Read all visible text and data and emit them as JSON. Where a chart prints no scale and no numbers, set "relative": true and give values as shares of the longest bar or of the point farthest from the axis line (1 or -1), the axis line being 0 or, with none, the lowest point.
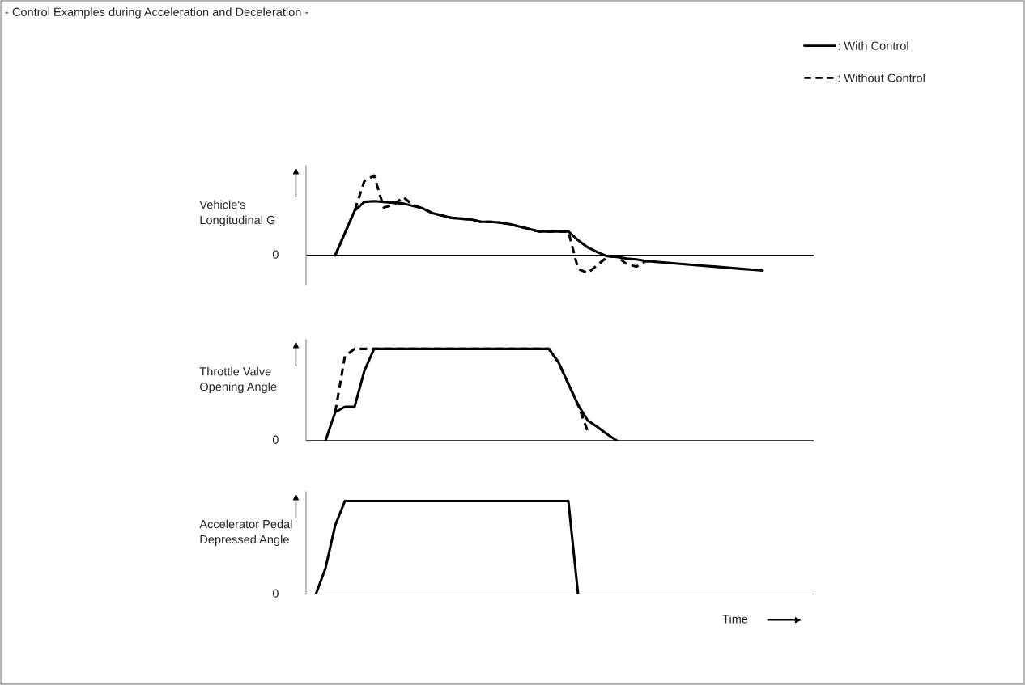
{
  "chart_data": [
    {
      "type": "line",
      "title": "- Control Examples during Acceleration and Deceleration -",
      "ylabel": "Vehicle's\nLongitudinal G",
      "relative": true,
      "annotations": [
        "0"
      ],
      "legend": "top right",
      "categories": [
        null,
        null,
        null,
        null,
        null,
        null,
        null,
        null,
        null,
        null,
        null,
        null,
        null,
        null,
        null,
        null,
        null,
        null,
        null,
        null,
        null,
        null,
        null,
        null,
        null,
        null,
        null,
        null,
        null,
        null,
        null,
        null,
        null,
        null,
        null,
        null,
        null,
        null,
        null,
        null,
        null,
        null,
        null,
        null,
        null,
        null,
        null,
        null,
        null,
        null,
        null,
        null,
        null
      ],
      "series": [
        {
          "name": ": With Control",
          "color": "#000000",
          "line_style": "solid",
          "values": [
            null,
            null,
            null,
            0,
            0.28,
            0.56,
            0.67,
            0.68,
            0.67,
            0.66,
            0.65,
            0.62,
            0.59,
            0.53,
            0.5,
            0.47,
            0.46,
            0.45,
            0.42,
            0.42,
            0.41,
            0.39,
            0.36,
            0.33,
            0.3,
            0.3,
            0.3,
            0.3,
            0.19,
            0.1,
            0.04,
            -0.01,
            -0.02,
            -0.04,
            -0.05,
            -0.07,
            -0.08,
            -0.09,
            -0.1,
            -0.11,
            -0.12,
            -0.13,
            -0.14,
            -0.15,
            -0.16,
            -0.17,
            -0.18,
            -0.19,
            null,
            null,
            null,
            null,
            null
          ]
        },
        {
          "name": ": Without Control",
          "color": "#000000",
          "line_style": "dashed",
          "values": [
            null,
            null,
            null,
            0,
            0.28,
            0.56,
            0.93,
            1.0,
            0.6,
            0.63,
            0.73,
            0.63,
            0.59,
            0.53,
            0.5,
            0.47,
            0.46,
            0.45,
            0.42,
            0.42,
            0.41,
            0.39,
            0.36,
            0.33,
            0.3,
            0.3,
            0.3,
            0.3,
            -0.17,
            -0.22,
            -0.12,
            -0.02,
            -0.01,
            -0.11,
            -0.14,
            -0.07,
            -0.08,
            null,
            null,
            null,
            null,
            null,
            null,
            null,
            null,
            null,
            null,
            null,
            null,
            null,
            null,
            null,
            null
          ]
        }
      ]
    },
    {
      "type": "line",
      "ylabel": "Throttle Valve\nOpening Angle",
      "relative": true,
      "annotations": [
        "0"
      ],
      "categories": [
        null,
        null,
        null,
        null,
        null,
        null,
        null,
        null,
        null,
        null,
        null,
        null,
        null,
        null,
        null,
        null,
        null,
        null,
        null,
        null,
        null,
        null,
        null,
        null,
        null,
        null,
        null,
        null,
        null,
        null,
        null,
        null,
        null,
        null,
        null,
        null,
        null,
        null,
        null,
        null,
        null,
        null,
        null,
        null,
        null,
        null,
        null,
        null,
        null,
        null,
        null,
        null,
        null
      ],
      "series": [
        {
          "color": "#000000",
          "line_style": "solid",
          "values": [
            null,
            null,
            0,
            0.31,
            0.37,
            0.37,
            0.76,
            1,
            1,
            1,
            1,
            1,
            1,
            1,
            1,
            1,
            1,
            1,
            1,
            1,
            1,
            1,
            1,
            1,
            1,
            1,
            0.85,
            0.62,
            0.39,
            0.22,
            0.15,
            0.07,
            0,
            null,
            null,
            null,
            null,
            null,
            null,
            null,
            null,
            null,
            null,
            null,
            null,
            null,
            null,
            null,
            null,
            null,
            null,
            null,
            null
          ]
        },
        {
          "color": "#000000",
          "line_style": "dashed",
          "values": [
            null,
            null,
            null,
            0.31,
            0.92,
            1,
            1,
            1,
            1,
            1,
            1,
            1,
            1,
            1,
            1,
            1,
            1,
            1,
            1,
            1,
            1,
            1,
            1,
            1,
            1,
            1,
            0.85,
            0.62,
            0.39,
            0.1,
            null,
            null,
            null,
            null,
            null,
            null,
            null,
            null,
            null,
            null,
            null,
            null,
            null,
            null,
            null,
            null,
            null,
            null,
            null,
            null,
            null,
            null,
            null
          ]
        }
      ]
    },
    {
      "type": "line",
      "ylabel": "Accelerator Pedal\nDepressed Angle",
      "xlabel": "Time",
      "relative": true,
      "annotations": [
        "0"
      ],
      "categories": [
        null,
        null,
        null,
        null,
        null,
        null,
        null,
        null,
        null,
        null,
        null,
        null,
        null,
        null,
        null,
        null,
        null,
        null,
        null,
        null,
        null,
        null,
        null,
        null,
        null,
        null,
        null,
        null,
        null,
        null,
        null,
        null,
        null,
        null,
        null,
        null,
        null,
        null,
        null,
        null,
        null,
        null,
        null,
        null,
        null,
        null,
        null,
        null,
        null,
        null,
        null,
        null,
        null
      ],
      "series": [
        {
          "color": "#000000",
          "line_style": "solid",
          "values": [
            null,
            0,
            0.28,
            0.74,
            1,
            1,
            1,
            1,
            1,
            1,
            1,
            1,
            1,
            1,
            1,
            1,
            1,
            1,
            1,
            1,
            1,
            1,
            1,
            1,
            1,
            1,
            1,
            1,
            0,
            null,
            null,
            null,
            null,
            null,
            null,
            null,
            null,
            null,
            null,
            null,
            null,
            null,
            null,
            null,
            null,
            null,
            null,
            null,
            null,
            null,
            null,
            null,
            null
          ]
        }
      ]
    }
  ]
}
